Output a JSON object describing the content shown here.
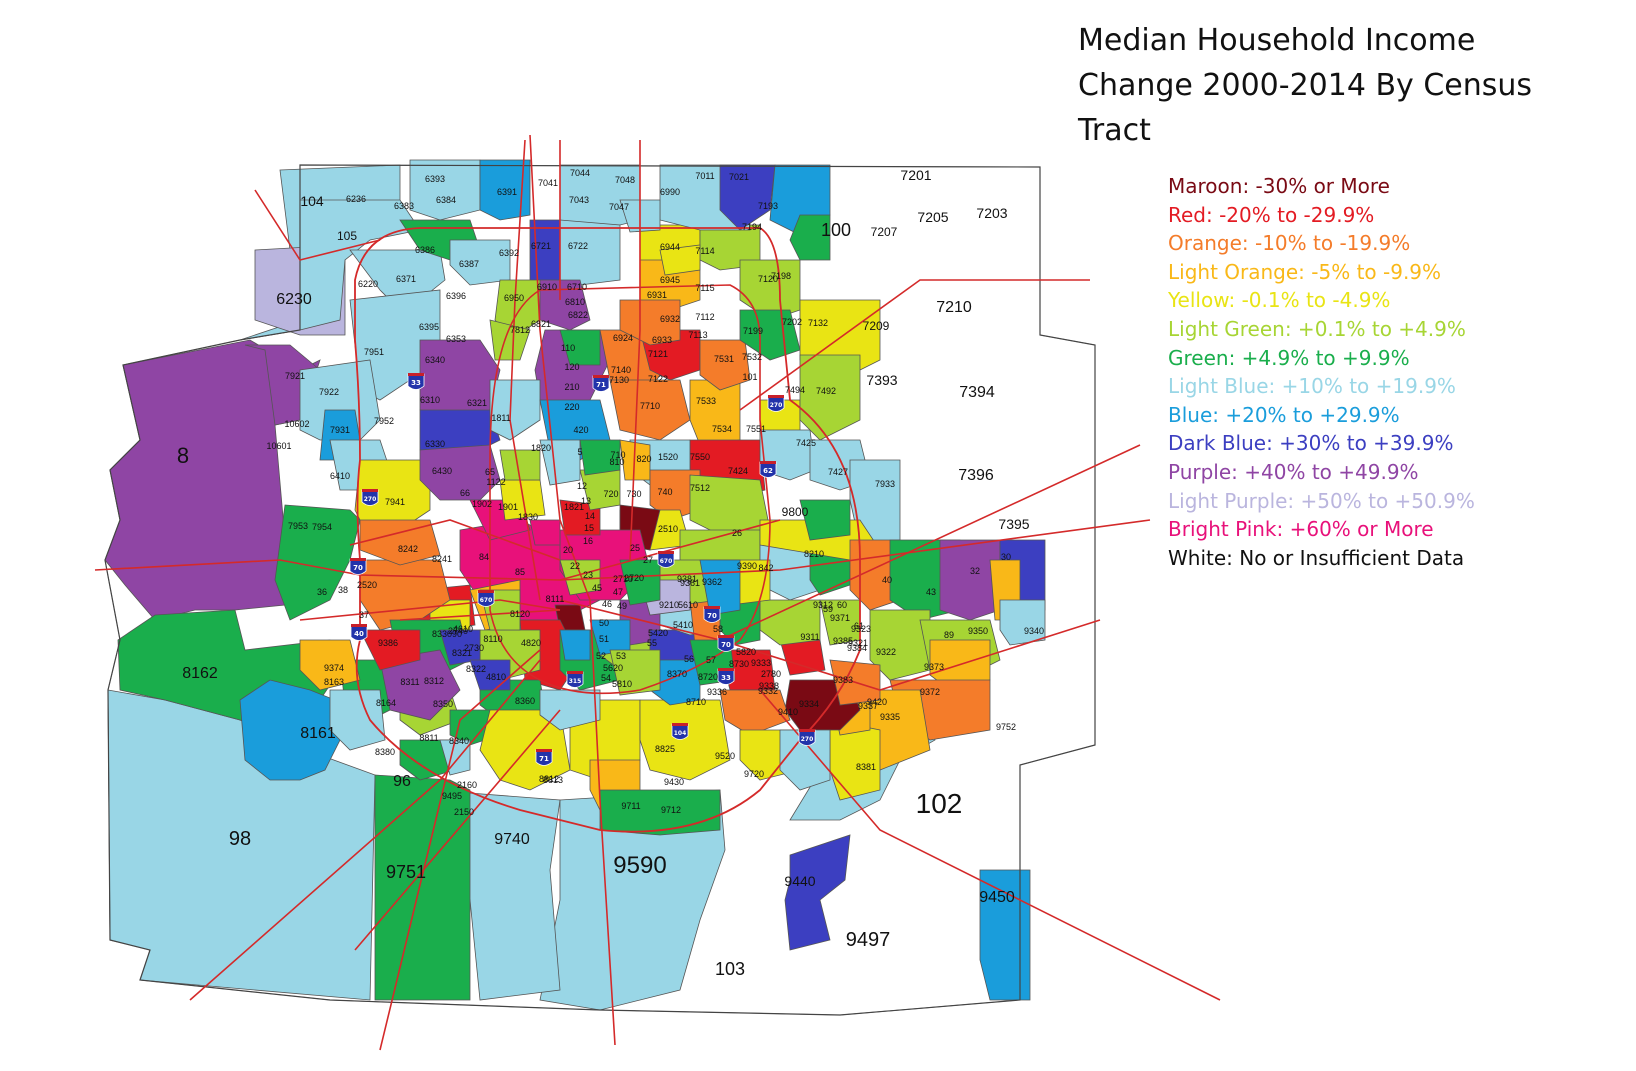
{
  "title_lines": [
    "Median Household Income",
    "Change 2000-2014 By Census",
    "Tract"
  ],
  "legend": [
    {
      "label": "Maroon: -30% or More",
      "color": "#7a0a14"
    },
    {
      "label": "Red: -20% to -29.9%",
      "color": "#e31b23"
    },
    {
      "label": "Orange: -10% to -19.9%",
      "color": "#f47c2a"
    },
    {
      "label": "Light Orange: -5% to -9.9%",
      "color": "#f9b818"
    },
    {
      "label": "Yellow: -0.1% to -4.9%",
      "color": "#e9e414"
    },
    {
      "label": "Light Green: +0.1% to +4.9%",
      "color": "#a7d534"
    },
    {
      "label": "Green: +4.9% to +9.9%",
      "color": "#1aae4c"
    },
    {
      "label": "Light Blue: +10% to +19.9%",
      "color": "#99d6e6"
    },
    {
      "label": "Blue: +20% to +29.9%",
      "color": "#1a9ddb"
    },
    {
      "label": "Dark Blue: +30% to +39.9%",
      "color": "#3c3fc1"
    },
    {
      "label": "Purple: +40% to +49.9%",
      "color": "#8f45a4"
    },
    {
      "label": "Light Purple: +50% to +50.9%",
      "color": "#bab5de"
    },
    {
      "label": "Bright Pink: +60% or More",
      "color": "#e8117a"
    },
    {
      "label": "White: No or Insufficient Data",
      "color": "#111111"
    }
  ],
  "colors": {
    "maroon": "#7a0a14",
    "red": "#e31b23",
    "orange": "#f47c2a",
    "lightorange": "#f9b818",
    "yellow": "#e9e414",
    "lightgreen": "#a7d534",
    "green": "#1aae4c",
    "lightblue": "#99d6e6",
    "blue": "#1a9ddb",
    "darkblue": "#3c3fc1",
    "purple": "#8f45a4",
    "lightpurple": "#bab5de",
    "pink": "#e8117a",
    "white": "#ffffff",
    "road": "#d42a2a",
    "border": "#555555"
  },
  "highway_shields": [
    "33",
    "71",
    "270",
    "62",
    "270",
    "70",
    "670",
    "670",
    "70",
    "40",
    "315",
    "70",
    "33",
    "104",
    "270",
    "71"
  ],
  "county_labels": [
    "104",
    "105",
    "6230",
    "8",
    "100",
    "7210",
    "7394",
    "7396",
    "7395",
    "7393",
    "102",
    "103",
    "9497",
    "9450",
    "9440",
    "9590",
    "9751",
    "98",
    "96",
    "8162",
    "8161",
    "9740",
    "7201",
    "7205",
    "7203",
    "7207",
    "7209",
    "9800"
  ],
  "tract_labels": [
    "6236",
    "6383",
    "6384",
    "6393",
    "6391",
    "7041",
    "7044",
    "7043",
    "7048",
    "7047",
    "6990",
    "7011",
    "7021",
    "7193",
    "7194",
    "6386",
    "6387",
    "6392",
    "6721",
    "6722",
    "6944",
    "7114",
    "7120",
    "7198",
    "6371",
    "6396",
    "6950",
    "6910",
    "6710",
    "6810",
    "6822",
    "6945",
    "7115",
    "6931",
    "6932",
    "7112",
    "7199",
    "7202",
    "7132",
    "6220",
    "6395",
    "6353",
    "6340",
    "7812",
    "6821",
    "110",
    "6924",
    "6933",
    "7113",
    "7121",
    "7122",
    "7531",
    "7532",
    "7951",
    "7922",
    "7921",
    "6310",
    "6321",
    "1811",
    "120",
    "210",
    "220",
    "420",
    "7130",
    "7140",
    "7710",
    "7533",
    "7534",
    "7551",
    "101",
    "7494",
    "7492",
    "10602",
    "10601",
    "7931",
    "7952",
    "6330",
    "1820",
    "5",
    "710",
    "810",
    "820",
    "1520",
    "7550",
    "7424",
    "7425",
    "7427",
    "7933",
    "6410",
    "6430",
    "65",
    "66",
    "1122",
    "1830",
    "1902",
    "1901",
    "1821",
    "12",
    "13",
    "14",
    "15",
    "16",
    "720",
    "730",
    "740",
    "2510",
    "7512",
    "26",
    "7941",
    "7953",
    "7954",
    "8242",
    "8241",
    "84",
    "85",
    "20",
    "22",
    "23",
    "25",
    "27",
    "2710",
    "2720",
    "9210",
    "9361",
    "9362",
    "9381",
    "9390",
    "842",
    "8210",
    "40",
    "43",
    "32",
    "30",
    "36",
    "38",
    "37",
    "2520",
    "90",
    "2730",
    "2740",
    "8110",
    "8120",
    "8111",
    "45",
    "47",
    "46",
    "49",
    "50",
    "51",
    "52",
    "53",
    "54",
    "55",
    "56",
    "57",
    "58",
    "59",
    "60",
    "61",
    "89",
    "9350",
    "9340",
    "9383",
    "9384",
    "9385",
    "9311",
    "9312",
    "9321",
    "9322",
    "9323",
    "9371",
    "9386",
    "8311",
    "8312",
    "8321",
    "8322",
    "8330",
    "4610",
    "4810",
    "4820",
    "5420",
    "5410",
    "5610",
    "5620",
    "5810",
    "5820",
    "2780",
    "9332",
    "9333",
    "9334",
    "9337",
    "9335",
    "9372",
    "9373",
    "9374",
    "8163",
    "8164",
    "8350",
    "8360",
    "8340",
    "8370",
    "8710",
    "8720",
    "8730",
    "9336",
    "9338",
    "9410",
    "9420",
    "9752",
    "8381",
    "8380",
    "8811",
    "8812",
    "8813",
    "8825",
    "9520",
    "9430",
    "9711",
    "9712",
    "9720",
    "9495",
    "2150",
    "2160"
  ]
}
